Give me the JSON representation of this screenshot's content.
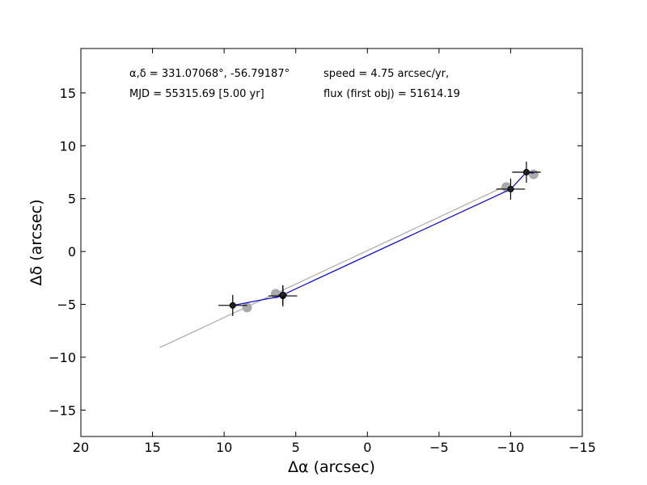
{
  "chart_data": {
    "type": "scatter",
    "xlabel": "Δα (arcsec)",
    "ylabel": "Δδ (arcsec)",
    "xlim": [
      20,
      -15
    ],
    "ylim": [
      -17.5,
      19.2
    ],
    "xticks": [
      20,
      15,
      10,
      5,
      0,
      -5,
      -10,
      -15
    ],
    "yticks": [
      15,
      10,
      5,
      0,
      -5,
      -10,
      -15
    ],
    "xtick_labels": [
      "20",
      "15",
      "10",
      "5",
      "0",
      "−5",
      "−10",
      "−15"
    ],
    "ytick_labels": [
      "15",
      "10",
      "5",
      "0",
      "−5",
      "−10",
      "−15"
    ],
    "grid": false,
    "annotations": {
      "coords": "α,δ = 331.07068°, -56.79187°",
      "mjd": "MJD = 55315.69 [5.00 yr]",
      "speed": "speed = 4.75 arcsec/yr,",
      "flux": "flux (first obj) = 51614.19"
    },
    "series": [
      {
        "style": "line",
        "color": "#aaaaaa",
        "x": [
          14.5,
          -9.5
        ],
        "y": [
          -9.1,
          6.1
        ]
      },
      {
        "style": "markers",
        "color": "#aaaaaa",
        "x": [
          8.4,
          6.4,
          -9.7,
          -11.6
        ],
        "y": [
          -5.3,
          -4.0,
          6.1,
          7.3
        ]
      },
      {
        "style": "line",
        "color": "#0000cc",
        "x": [
          9.4,
          5.9,
          5.9,
          -10.0,
          -11.1,
          -11.6
        ],
        "y": [
          -5.1,
          -4.2,
          -4.1,
          5.9,
          7.5,
          7.4
        ]
      },
      {
        "style": "errorbar",
        "color": "#000000",
        "points": [
          {
            "x": 9.4,
            "y": -5.1,
            "xerr": 1.0,
            "yerr": 1.0
          },
          {
            "x": 5.9,
            "y": -4.2,
            "xerr": 1.0,
            "yerr": 1.0
          },
          {
            "x": 5.9,
            "y": -4.1,
            "xerr": 0.3,
            "yerr": 0.9
          },
          {
            "x": -10.0,
            "y": 5.9,
            "xerr": 1.0,
            "yerr": 1.0
          },
          {
            "x": -11.1,
            "y": 7.5,
            "xerr": 1.0,
            "yerr": 1.0
          }
        ]
      }
    ]
  }
}
